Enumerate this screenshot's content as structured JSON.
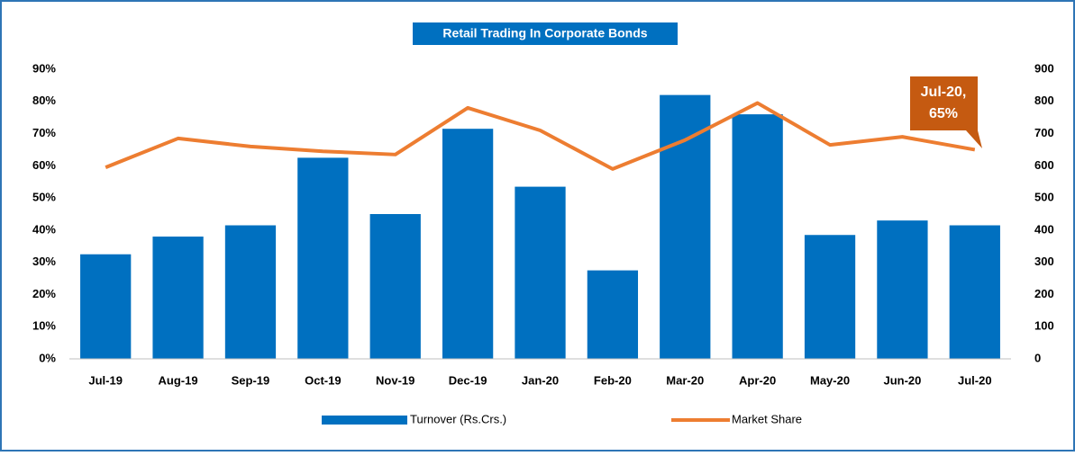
{
  "chart_data": {
    "type": "bar",
    "title": "Retail Trading In Corporate Bonds",
    "categories": [
      "Jul-19",
      "Aug-19",
      "Sep-19",
      "Oct-19",
      "Nov-19",
      "Dec-19",
      "Jan-20",
      "Feb-20",
      "Mar-20",
      "Apr-20",
      "May-20",
      "Jun-20",
      "Jul-20"
    ],
    "series": [
      {
        "name": "Turnover (Rs.Crs.)",
        "type": "bar",
        "axis": "y2",
        "color": "#0070c0",
        "values": [
          325,
          380,
          415,
          625,
          450,
          715,
          535,
          275,
          820,
          760,
          385,
          430,
          415
        ]
      },
      {
        "name": "Market Share",
        "type": "line",
        "axis": "y",
        "color": "#ed7d31",
        "values": [
          59.5,
          68.5,
          66,
          64.5,
          63.5,
          78,
          71,
          59,
          68,
          79.5,
          66.5,
          69,
          65
        ]
      }
    ],
    "ylim": [
      0,
      90
    ],
    "yticks": [
      {
        "value": 0,
        "label": "0%"
      },
      {
        "value": 10,
        "label": "10%"
      },
      {
        "value": 20,
        "label": "20%"
      },
      {
        "value": 30,
        "label": "30%"
      },
      {
        "value": 40,
        "label": "40%"
      },
      {
        "value": 50,
        "label": "50%"
      },
      {
        "value": 60,
        "label": "60%"
      },
      {
        "value": 70,
        "label": "70%"
      },
      {
        "value": 80,
        "label": "80%"
      },
      {
        "value": 90,
        "label": "90%"
      }
    ],
    "y2lim": [
      0,
      900
    ],
    "y2ticks": [
      0,
      100,
      200,
      300,
      400,
      500,
      600,
      700,
      800,
      900
    ],
    "annotation": [
      "Jul-20,",
      "65%"
    ],
    "legend": "bottom"
  }
}
